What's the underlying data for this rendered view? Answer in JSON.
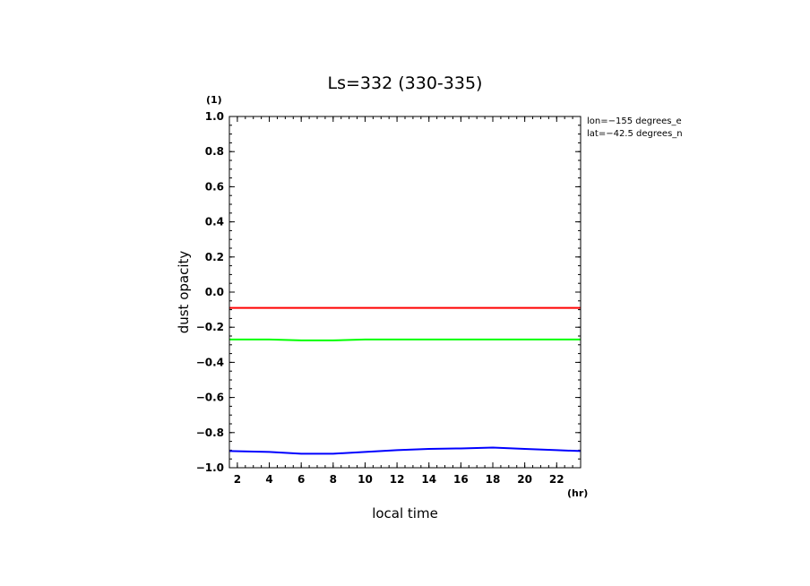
{
  "chart_data": {
    "type": "line",
    "title": "Ls=332 (330-335)",
    "xlabel": "local time",
    "ylabel": "dust opacity",
    "x_unit": "(hr)",
    "y_unit": "(1)",
    "xlim": [
      1.5,
      23.5
    ],
    "ylim": [
      -1.0,
      1.0
    ],
    "x_ticks": [
      "2",
      "4",
      "6",
      "8",
      "10",
      "12",
      "14",
      "16",
      "18",
      "20",
      "22"
    ],
    "y_ticks": [
      "1.0",
      "0.8",
      "0.6",
      "0.4",
      "0.2",
      "0.0",
      "−0.2",
      "−0.4",
      "−0.6",
      "−0.8",
      "−1.0"
    ],
    "annotations": [
      "lon=−155 degrees_e",
      "lat=−42.5 degrees_n"
    ],
    "grid": false,
    "series": [
      {
        "color": "#ff0000",
        "x": [
          1.5,
          4,
          6,
          8,
          10,
          12,
          14,
          16,
          18,
          20,
          22,
          23.5
        ],
        "y": [
          -0.09,
          -0.09,
          -0.09,
          -0.09,
          -0.09,
          -0.09,
          -0.09,
          -0.09,
          -0.09,
          -0.09,
          -0.09,
          -0.09
        ]
      },
      {
        "color": "#00ff00",
        "x": [
          1.5,
          4,
          6,
          8,
          10,
          12,
          14,
          16,
          18,
          20,
          22,
          23.5
        ],
        "y": [
          -0.27,
          -0.27,
          -0.275,
          -0.275,
          -0.27,
          -0.27,
          -0.27,
          -0.27,
          -0.27,
          -0.27,
          -0.27,
          -0.27
        ]
      },
      {
        "color": "#0000ff",
        "x": [
          1.5,
          4,
          6,
          8,
          10,
          12,
          14,
          16,
          18,
          20,
          22,
          23.5
        ],
        "y": [
          -0.905,
          -0.91,
          -0.92,
          -0.92,
          -0.91,
          -0.9,
          -0.893,
          -0.89,
          -0.885,
          -0.893,
          -0.9,
          -0.905
        ]
      }
    ]
  }
}
